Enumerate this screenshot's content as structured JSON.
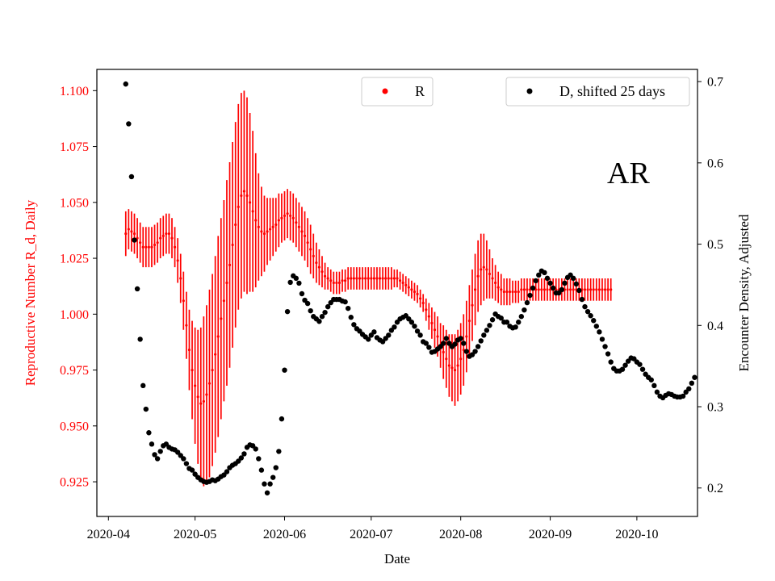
{
  "chart_data": {
    "type": "errorbar+scatter",
    "xlabel": "Date",
    "x_tick_labels": [
      "2020-04",
      "2020-05",
      "2020-06",
      "2020-07",
      "2020-08",
      "2020-09",
      "2020-10"
    ],
    "x_ticks": [
      "2020-04-01",
      "2020-05-01",
      "2020-06-01",
      "2020-07-01",
      "2020-08-01",
      "2020-09-01",
      "2020-10-01"
    ],
    "xlim": [
      "2020-03-28",
      "2020-10-22"
    ],
    "left_axis": {
      "label": "Reproductive Number R_d, Daily",
      "color": "#ff0000",
      "ylim": [
        0.9095,
        1.1095
      ],
      "ticks": [
        0.925,
        0.95,
        0.975,
        1.0,
        1.025,
        1.05,
        1.075,
        1.1
      ],
      "tick_labels": [
        "0.925",
        "0.950",
        "0.975",
        "1.000",
        "1.025",
        "1.050",
        "1.075",
        "1.100"
      ]
    },
    "right_axis": {
      "label": "Encounter Density, Adjusted",
      "color": "#000000",
      "ylim": [
        0.165,
        0.715
      ],
      "ticks": [
        0.2,
        0.3,
        0.4,
        0.5,
        0.6,
        0.7
      ],
      "tick_labels": [
        "0.2",
        "0.3",
        "0.4",
        "0.5",
        "0.6",
        "0.7"
      ]
    },
    "annotation": "AR",
    "legend": [
      {
        "label": "R",
        "color": "#ff0000",
        "placement": "top-center"
      },
      {
        "label": "D, shifted 25 days",
        "color": "#000000",
        "placement": "top-right"
      }
    ],
    "series": [
      {
        "name": "R",
        "axis": "left",
        "color": "#ff0000",
        "start_date": "2020-04-07",
        "center": [
          1.036,
          1.038,
          1.037,
          1.036,
          1.034,
          1.032,
          1.03,
          1.03,
          1.03,
          1.03,
          1.031,
          1.032,
          1.034,
          1.035,
          1.036,
          1.036,
          1.034,
          1.03,
          1.024,
          1.016,
          1.006,
          0.995,
          0.984,
          0.975,
          0.968,
          0.963,
          0.96,
          0.961,
          0.964,
          0.969,
          0.975,
          0.982,
          0.99,
          0.998,
          1.006,
          1.014,
          1.022,
          1.031,
          1.04,
          1.048,
          1.053,
          1.055,
          1.053,
          1.05,
          1.046,
          1.042,
          1.039,
          1.037,
          1.036,
          1.037,
          1.038,
          1.039,
          1.04,
          1.042,
          1.043,
          1.044,
          1.045,
          1.044,
          1.043,
          1.041,
          1.039,
          1.037,
          1.035,
          1.032,
          1.029,
          1.026,
          1.023,
          1.021,
          1.019,
          1.017,
          1.016,
          1.015,
          1.014,
          1.014,
          1.014,
          1.015,
          1.015,
          1.016,
          1.016,
          1.016,
          1.016,
          1.016,
          1.016,
          1.016,
          1.016,
          1.016,
          1.016,
          1.016,
          1.016,
          1.016,
          1.016,
          1.016,
          1.016,
          1.016,
          1.016,
          1.015,
          1.014,
          1.013,
          1.012,
          1.011,
          1.01,
          1.009,
          1.007,
          1.005,
          1.002,
          0.999,
          0.996,
          0.993,
          0.99,
          0.986,
          0.983,
          0.98,
          0.977,
          0.976,
          0.975,
          0.977,
          0.98,
          0.984,
          0.99,
          0.997,
          1.004,
          1.011,
          1.017,
          1.02,
          1.021,
          1.02,
          1.018,
          1.016,
          1.014,
          1.012,
          1.011,
          1.01,
          1.01,
          1.01,
          1.01,
          1.01,
          1.01,
          1.011,
          1.011,
          1.011,
          1.011,
          1.011,
          1.011,
          1.011,
          1.011,
          1.011,
          1.011,
          1.011,
          1.011,
          1.011,
          1.011,
          1.011,
          1.011,
          1.011,
          1.011,
          1.011,
          1.011,
          1.011,
          1.011,
          1.011,
          1.011,
          1.011,
          1.011,
          1.011,
          1.011,
          1.011,
          1.011,
          1.011,
          1.011
        ],
        "half_width": [
          0.01,
          0.009,
          0.009,
          0.009,
          0.009,
          0.009,
          0.009,
          0.009,
          0.009,
          0.009,
          0.009,
          0.009,
          0.009,
          0.009,
          0.009,
          0.009,
          0.009,
          0.009,
          0.01,
          0.011,
          0.013,
          0.015,
          0.018,
          0.022,
          0.026,
          0.03,
          0.034,
          0.038,
          0.04,
          0.042,
          0.043,
          0.044,
          0.045,
          0.045,
          0.045,
          0.046,
          0.046,
          0.046,
          0.046,
          0.046,
          0.046,
          0.045,
          0.044,
          0.04,
          0.036,
          0.03,
          0.024,
          0.02,
          0.017,
          0.015,
          0.014,
          0.013,
          0.012,
          0.012,
          0.011,
          0.011,
          0.011,
          0.011,
          0.011,
          0.011,
          0.011,
          0.011,
          0.011,
          0.011,
          0.011,
          0.01,
          0.009,
          0.008,
          0.007,
          0.006,
          0.005,
          0.005,
          0.005,
          0.005,
          0.005,
          0.005,
          0.005,
          0.005,
          0.005,
          0.005,
          0.005,
          0.005,
          0.005,
          0.005,
          0.005,
          0.005,
          0.005,
          0.005,
          0.005,
          0.005,
          0.005,
          0.005,
          0.005,
          0.004,
          0.004,
          0.004,
          0.004,
          0.004,
          0.004,
          0.004,
          0.004,
          0.004,
          0.004,
          0.004,
          0.005,
          0.006,
          0.007,
          0.008,
          0.009,
          0.01,
          0.012,
          0.013,
          0.014,
          0.015,
          0.016,
          0.016,
          0.016,
          0.016,
          0.016,
          0.016,
          0.016,
          0.016,
          0.016,
          0.016,
          0.015,
          0.013,
          0.011,
          0.009,
          0.008,
          0.007,
          0.007,
          0.006,
          0.006,
          0.006,
          0.005,
          0.005,
          0.005,
          0.005,
          0.005,
          0.005,
          0.005,
          0.005,
          0.005,
          0.005,
          0.005,
          0.005,
          0.005,
          0.005,
          0.005,
          0.005,
          0.005,
          0.005,
          0.005,
          0.005,
          0.005,
          0.005,
          0.005,
          0.005,
          0.005,
          0.005,
          0.005,
          0.005,
          0.005,
          0.005,
          0.005,
          0.005,
          0.005
        ]
      },
      {
        "name": "D, shifted 25 days",
        "axis": "right",
        "color": "#000000",
        "start_date": "2020-04-07",
        "values": [
          0.697,
          0.648,
          0.583,
          0.505,
          0.445,
          0.383,
          0.326,
          0.297,
          0.268,
          0.254,
          0.241,
          0.236,
          0.245,
          0.252,
          0.254,
          0.25,
          0.248,
          0.247,
          0.244,
          0.24,
          0.236,
          0.23,
          0.224,
          0.222,
          0.217,
          0.213,
          0.21,
          0.208,
          0.207,
          0.208,
          0.21,
          0.209,
          0.211,
          0.214,
          0.216,
          0.22,
          0.225,
          0.228,
          0.23,
          0.233,
          0.237,
          0.242,
          0.25,
          0.253,
          0.252,
          0.248,
          0.236,
          0.222,
          0.205,
          0.194,
          0.205,
          0.213,
          0.225,
          0.245,
          0.285,
          0.345,
          0.417,
          0.453,
          0.461,
          0.458,
          0.452,
          0.439,
          0.431,
          0.427,
          0.418,
          0.411,
          0.408,
          0.405,
          0.411,
          0.416,
          0.423,
          0.428,
          0.432,
          0.432,
          0.432,
          0.43,
          0.429,
          0.421,
          0.41,
          0.401,
          0.396,
          0.393,
          0.389,
          0.386,
          0.383,
          0.388,
          0.392,
          0.385,
          0.382,
          0.38,
          0.384,
          0.388,
          0.394,
          0.398,
          0.404,
          0.408,
          0.41,
          0.412,
          0.408,
          0.404,
          0.399,
          0.393,
          0.388,
          0.38,
          0.378,
          0.373,
          0.367,
          0.368,
          0.371,
          0.374,
          0.378,
          0.384,
          0.378,
          0.374,
          0.377,
          0.382,
          0.384,
          0.378,
          0.368,
          0.362,
          0.364,
          0.368,
          0.374,
          0.381,
          0.388,
          0.394,
          0.4,
          0.407,
          0.414,
          0.411,
          0.409,
          0.404,
          0.404,
          0.399,
          0.397,
          0.398,
          0.404,
          0.411,
          0.419,
          0.428,
          0.437,
          0.446,
          0.455,
          0.462,
          0.467,
          0.465,
          0.458,
          0.452,
          0.446,
          0.44,
          0.44,
          0.444,
          0.452,
          0.459,
          0.462,
          0.458,
          0.451,
          0.443,
          0.432,
          0.423,
          0.417,
          0.412,
          0.406,
          0.399,
          0.392,
          0.383,
          0.374,
          0.365,
          0.355,
          0.347,
          0.344,
          0.344,
          0.346,
          0.351,
          0.356,
          0.36,
          0.359,
          0.355,
          0.352,
          0.346,
          0.34,
          0.336,
          0.333,
          0.326,
          0.318,
          0.313,
          0.311,
          0.314,
          0.316,
          0.315,
          0.313,
          0.312,
          0.312,
          0.313,
          0.318,
          0.322,
          0.329,
          0.336
        ]
      }
    ]
  }
}
